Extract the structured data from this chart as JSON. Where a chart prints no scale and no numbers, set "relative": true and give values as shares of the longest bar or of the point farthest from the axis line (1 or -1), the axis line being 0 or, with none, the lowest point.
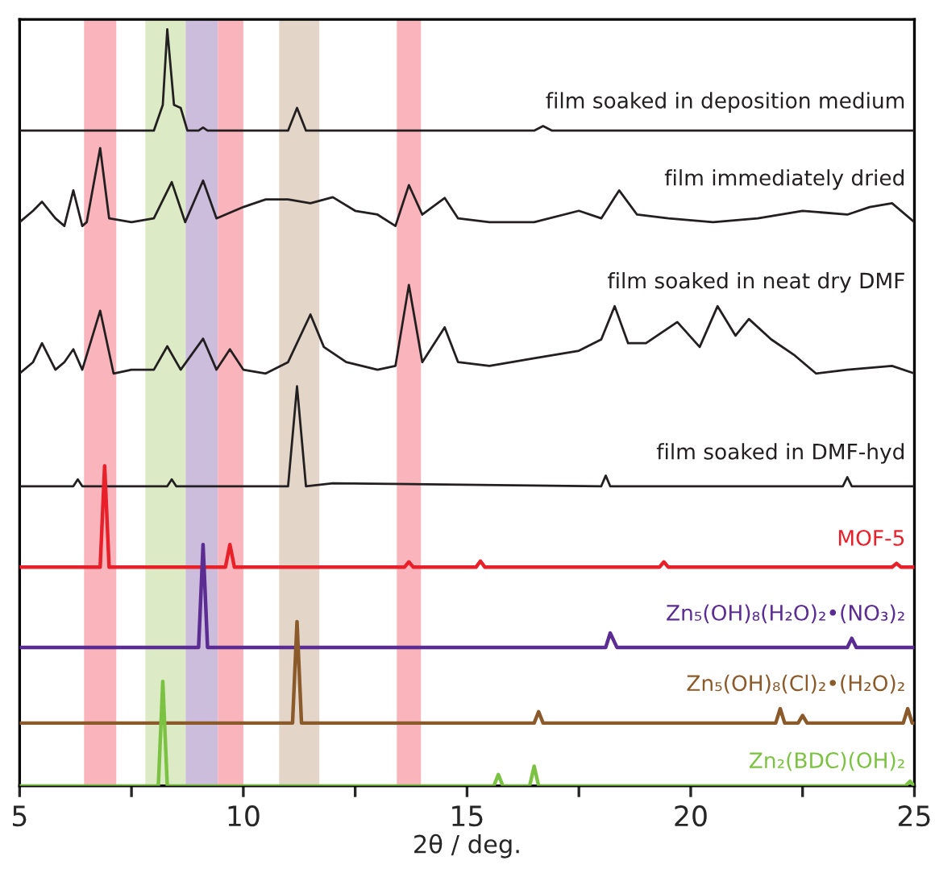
{
  "chart_data": {
    "type": "line",
    "relative": true,
    "xlabel": "2θ / deg.",
    "xlim": [
      5,
      25
    ],
    "xticks": [
      5,
      {
        "value": 7.5,
        "label": null
      },
      10,
      {
        "value": 12.5,
        "label": null
      },
      15,
      {
        "value": 17.5,
        "label": null
      },
      20,
      {
        "value": 22.5,
        "label": null
      },
      25
    ],
    "tick_labels": "x",
    "grid": false,
    "legend": false,
    "marker": "none",
    "line_style": "solid",
    "bands": [
      {
        "axis": "x",
        "from": 6.44,
        "to": 7.16,
        "color": "#f9b5bb"
      },
      {
        "axis": "x",
        "from": 7.81,
        "to": 8.71,
        "color": "#dcebc5"
      },
      {
        "axis": "x",
        "from": 8.71,
        "to": 9.43,
        "color": "#cdbddc"
      },
      {
        "axis": "x",
        "from": 9.43,
        "to": 10.0,
        "color": "#f9b5bb"
      },
      {
        "axis": "x",
        "from": 10.8,
        "to": 11.7,
        "color": "#e3d6c9"
      },
      {
        "axis": "x",
        "from": 13.43,
        "to": 13.97,
        "color": "#f9b5bb"
      }
    ],
    "series": [
      {
        "name": "film soaked in deposition medium",
        "color": "#231f20",
        "x": [
          5,
          8.0,
          8.2,
          8.3,
          8.45,
          8.6,
          8.75,
          9.0,
          9.1,
          9.2,
          11.0,
          11.2,
          11.4,
          16.5,
          16.7,
          16.9,
          25
        ],
        "values": [
          0.866,
          0.866,
          0.9,
          1.0,
          0.9,
          0.896,
          0.866,
          0.866,
          0.87,
          0.866,
          0.866,
          0.896,
          0.866,
          0.866,
          0.872,
          0.866,
          0.866
        ]
      },
      {
        "name": "film immediately dried",
        "color": "#231f20",
        "x": [
          5,
          5.3,
          5.5,
          5.8,
          6.0,
          6.2,
          6.4,
          6.5,
          6.8,
          7.0,
          7.5,
          8.0,
          8.4,
          8.7,
          9.1,
          9.4,
          10.0,
          10.5,
          11.0,
          11.5,
          12.0,
          12.5,
          13.0,
          13.4,
          13.7,
          14.0,
          14.5,
          14.8,
          15.5,
          16.5,
          17.5,
          18.0,
          18.4,
          18.8,
          19.5,
          20.5,
          21.5,
          22.5,
          23.5,
          24.0,
          24.5,
          25
        ],
        "values": [
          0.745,
          0.76,
          0.772,
          0.75,
          0.74,
          0.787,
          0.74,
          0.745,
          0.843,
          0.75,
          0.745,
          0.75,
          0.798,
          0.745,
          0.8,
          0.75,
          0.765,
          0.775,
          0.775,
          0.77,
          0.778,
          0.76,
          0.755,
          0.74,
          0.794,
          0.755,
          0.777,
          0.75,
          0.745,
          0.745,
          0.76,
          0.75,
          0.787,
          0.755,
          0.75,
          0.745,
          0.75,
          0.76,
          0.755,
          0.765,
          0.77,
          0.745
        ]
      },
      {
        "name": "film soaked in neat dry DMF",
        "color": "#231f20",
        "x": [
          5,
          5.3,
          5.5,
          5.8,
          6.0,
          6.2,
          6.4,
          6.8,
          7.1,
          7.5,
          8.0,
          8.3,
          8.6,
          9.1,
          9.4,
          9.7,
          10.0,
          10.5,
          11.0,
          11.5,
          11.8,
          12.3,
          13.0,
          13.4,
          13.7,
          14.0,
          14.5,
          14.8,
          15.5,
          16.5,
          17.5,
          18.0,
          18.3,
          18.6,
          19.0,
          19.7,
          20.2,
          20.6,
          21.0,
          21.3,
          21.8,
          22.3,
          22.8,
          23.5,
          24.5,
          25
        ],
        "values": [
          0.545,
          0.56,
          0.585,
          0.55,
          0.56,
          0.577,
          0.55,
          0.628,
          0.545,
          0.55,
          0.55,
          0.581,
          0.55,
          0.591,
          0.55,
          0.577,
          0.55,
          0.545,
          0.56,
          0.623,
          0.58,
          0.56,
          0.55,
          0.555,
          0.662,
          0.56,
          0.606,
          0.56,
          0.555,
          0.565,
          0.575,
          0.59,
          0.634,
          0.585,
          0.585,
          0.613,
          0.58,
          0.634,
          0.595,
          0.617,
          0.59,
          0.57,
          0.545,
          0.55,
          0.555,
          0.545
        ]
      },
      {
        "name": "film soaked in DMF-hyd",
        "color": "#231f20",
        "x": [
          5,
          6.2,
          6.3,
          6.4,
          8.3,
          8.4,
          8.5,
          11.0,
          11.2,
          11.4,
          12.0,
          18.0,
          18.1,
          18.2,
          23.4,
          23.5,
          23.6,
          25
        ],
        "values": [
          0.396,
          0.396,
          0.405,
          0.396,
          0.396,
          0.405,
          0.396,
          0.396,
          0.528,
          0.396,
          0.4,
          0.396,
          0.41,
          0.396,
          0.396,
          0.408,
          0.396,
          0.396
        ]
      },
      {
        "name": "MOF-5",
        "color": "#e8202a",
        "x": [
          5,
          6.8,
          6.9,
          7.0,
          9.6,
          9.7,
          9.8,
          13.6,
          13.7,
          13.8,
          15.2,
          15.3,
          15.4,
          19.3,
          19.4,
          19.5,
          24.5,
          24.6,
          24.7,
          25
        ],
        "values": [
          0.289,
          0.289,
          0.423,
          0.289,
          0.289,
          0.319,
          0.289,
          0.289,
          0.296,
          0.289,
          0.289,
          0.297,
          0.289,
          0.289,
          0.296,
          0.289,
          0.289,
          0.294,
          0.289,
          0.289
        ]
      },
      {
        "name": "Zn₅(OH)₈(H₂O)₂•(NO₃)₂",
        "color": "#5b2c91",
        "x": [
          5,
          9.0,
          9.1,
          9.2,
          18.1,
          18.2,
          18.35,
          23.5,
          23.6,
          23.7,
          25
        ],
        "values": [
          0.183,
          0.183,
          0.319,
          0.183,
          0.183,
          0.202,
          0.183,
          0.183,
          0.195,
          0.183,
          0.183
        ]
      },
      {
        "name": "Zn₅(OH)₈(Cl)₂•(H₂O)₂",
        "color": "#8b5a2b",
        "x": [
          5,
          11.1,
          11.2,
          11.3,
          16.5,
          16.6,
          16.7,
          21.9,
          22.0,
          22.1,
          22.4,
          22.5,
          22.6,
          24.75,
          24.85,
          24.95,
          25
        ],
        "values": [
          0.083,
          0.083,
          0.217,
          0.083,
          0.083,
          0.098,
          0.083,
          0.083,
          0.102,
          0.083,
          0.083,
          0.093,
          0.083,
          0.083,
          0.102,
          0.083,
          0.083
        ]
      },
      {
        "name": "Zn₂(BDC)(OH)₂",
        "color": "#7cc242",
        "x": [
          5,
          8.1,
          8.2,
          8.3,
          15.6,
          15.7,
          15.8,
          16.4,
          16.5,
          16.6,
          24.8,
          24.9,
          25
        ],
        "values": [
          0,
          0,
          0.138,
          0,
          0,
          0.015,
          0,
          0,
          0.026,
          0,
          0,
          0.006,
          0
        ]
      }
    ]
  }
}
